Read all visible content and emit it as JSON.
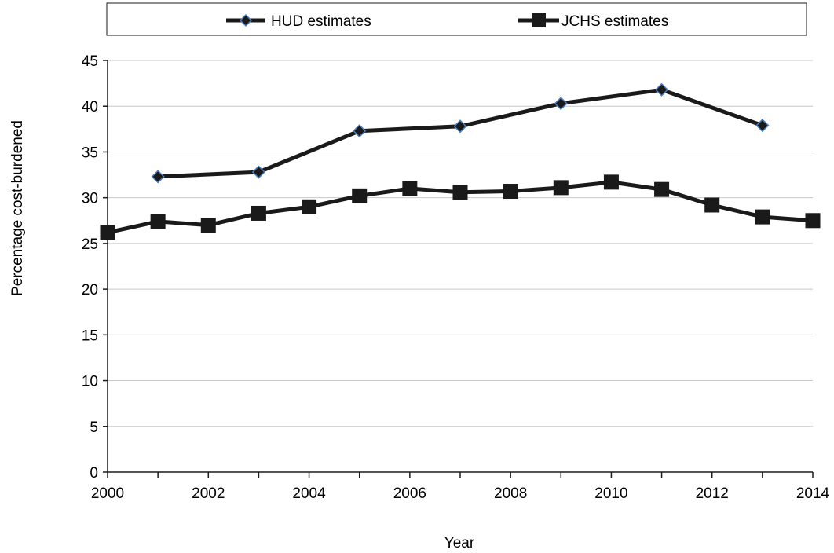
{
  "chart_data": {
    "type": "line",
    "title": "",
    "xlabel": "Year",
    "ylabel": "Percentage cost-burdened",
    "xlim": [
      2000,
      2014
    ],
    "ylim": [
      0,
      45
    ],
    "x_ticks": [
      "2000",
      "2002",
      "2004",
      "2006",
      "2008",
      "2010",
      "2012",
      "2014"
    ],
    "y_ticks": [
      "0",
      "5",
      "10",
      "15",
      "20",
      "25",
      "30",
      "35",
      "40",
      "45"
    ],
    "grid": true,
    "legend_position": "top",
    "series": [
      {
        "name": "HUD estimates",
        "marker": "diamond",
        "line_color": "#1a1a1a",
        "marker_fill": "#1a1a1a",
        "marker_edge": "#4a7ebb",
        "points": [
          {
            "x": 2001,
            "y": 32.3
          },
          {
            "x": 2003,
            "y": 32.8
          },
          {
            "x": 2005,
            "y": 37.3
          },
          {
            "x": 2007,
            "y": 37.8
          },
          {
            "x": 2009,
            "y": 40.3
          },
          {
            "x": 2011,
            "y": 41.8
          },
          {
            "x": 2013,
            "y": 37.9
          }
        ]
      },
      {
        "name": "JCHS estimates",
        "marker": "square",
        "line_color": "#1a1a1a",
        "marker_fill": "#1a1a1a",
        "marker_edge": "#1a1a1a",
        "points": [
          {
            "x": 2000,
            "y": 26.2
          },
          {
            "x": 2001,
            "y": 27.4
          },
          {
            "x": 2002,
            "y": 27.0
          },
          {
            "x": 2003,
            "y": 28.3
          },
          {
            "x": 2004,
            "y": 29.0
          },
          {
            "x": 2005,
            "y": 30.2
          },
          {
            "x": 2006,
            "y": 31.0
          },
          {
            "x": 2007,
            "y": 30.6
          },
          {
            "x": 2008,
            "y": 30.7
          },
          {
            "x": 2009,
            "y": 31.1
          },
          {
            "x": 2010,
            "y": 31.7
          },
          {
            "x": 2011,
            "y": 30.9
          },
          {
            "x": 2012,
            "y": 29.2
          },
          {
            "x": 2013,
            "y": 27.9
          },
          {
            "x": 2014,
            "y": 27.5
          }
        ]
      }
    ]
  }
}
